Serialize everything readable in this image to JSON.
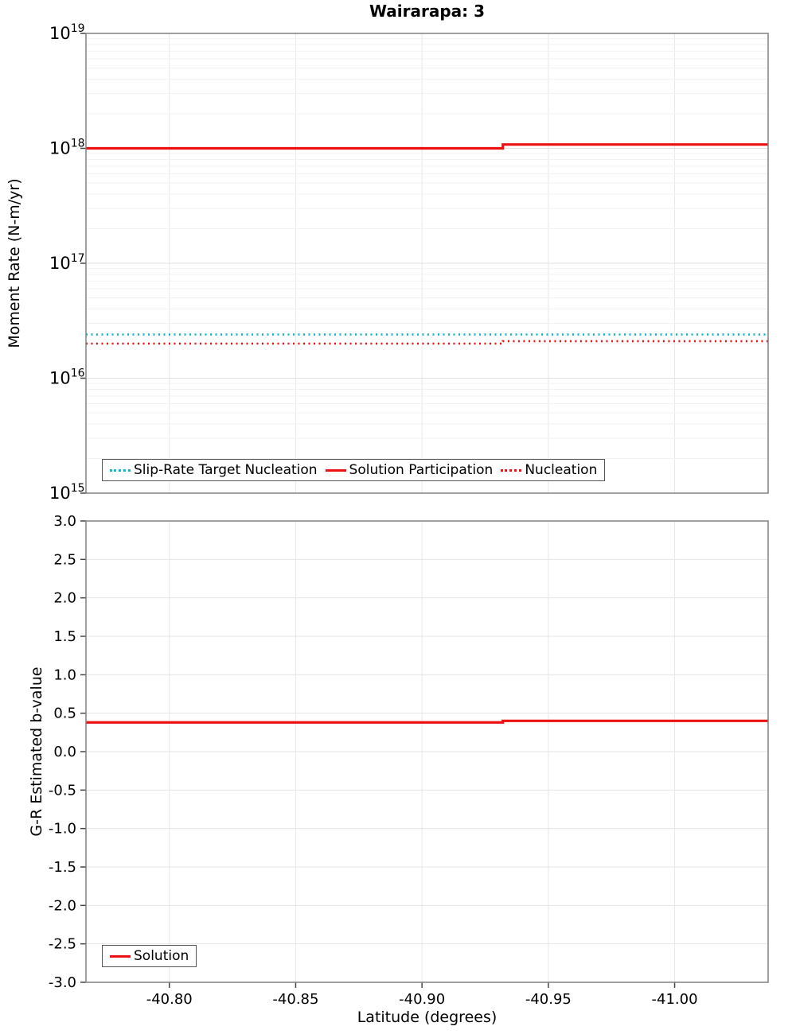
{
  "colors": {
    "solution_red": "#ee1111",
    "target_cyan": "#0bb8cc",
    "grid_major": "#e0e0e0",
    "grid_minor": "#f2f2f2",
    "plot_border": "#808080"
  },
  "chart_data": [
    {
      "type": "line",
      "title": "Wairarapa: 3",
      "ylabel": "Moment Rate (N-m/yr)",
      "yscale": "log",
      "ylim": [
        1000000000000000.0,
        1e+19
      ],
      "xlim": [
        -40.767,
        -41.037
      ],
      "xticks": [
        -40.8,
        -40.85,
        -40.9,
        -40.95,
        -41.0
      ],
      "grid": true,
      "legend_position": "inside-bottom-left",
      "series": [
        {
          "name": "Slip-Rate Target Nucleation",
          "color": "#0bb8cc",
          "line_style": "dotted",
          "points": [
            [
              -40.767,
              2.4e+16
            ],
            [
              -41.037,
              2.4e+16
            ]
          ]
        },
        {
          "name": "Solution Participation",
          "color": "#ee1111",
          "line_style": "solid",
          "points": [
            [
              -40.767,
              1e+18
            ],
            [
              -40.932,
              1e+18
            ],
            [
              -40.932,
              1.08e+18
            ],
            [
              -41.037,
              1.08e+18
            ]
          ]
        },
        {
          "name": "Nucleation",
          "color": "#ee1111",
          "line_style": "dotted",
          "points": [
            [
              -40.767,
              2e+16
            ],
            [
              -40.932,
              2e+16
            ],
            [
              -40.932,
              2.1e+16
            ],
            [
              -41.037,
              2.1e+16
            ]
          ]
        }
      ]
    },
    {
      "type": "line",
      "xlabel": "Latitude (degrees)",
      "ylabel": "G-R Estimated b-value",
      "yscale": "linear",
      "ylim": [
        -3.0,
        3.0
      ],
      "ytick_step": 0.5,
      "xlim": [
        -40.767,
        -41.037
      ],
      "xticks": [
        -40.8,
        -40.85,
        -40.9,
        -40.95,
        -41.0
      ],
      "grid": true,
      "legend_position": "inside-bottom-left",
      "series": [
        {
          "name": "Solution",
          "color": "#ee1111",
          "line_style": "solid",
          "points": [
            [
              -40.767,
              0.38
            ],
            [
              -40.932,
              0.38
            ],
            [
              -40.932,
              0.4
            ],
            [
              -41.037,
              0.4
            ]
          ]
        }
      ]
    }
  ]
}
